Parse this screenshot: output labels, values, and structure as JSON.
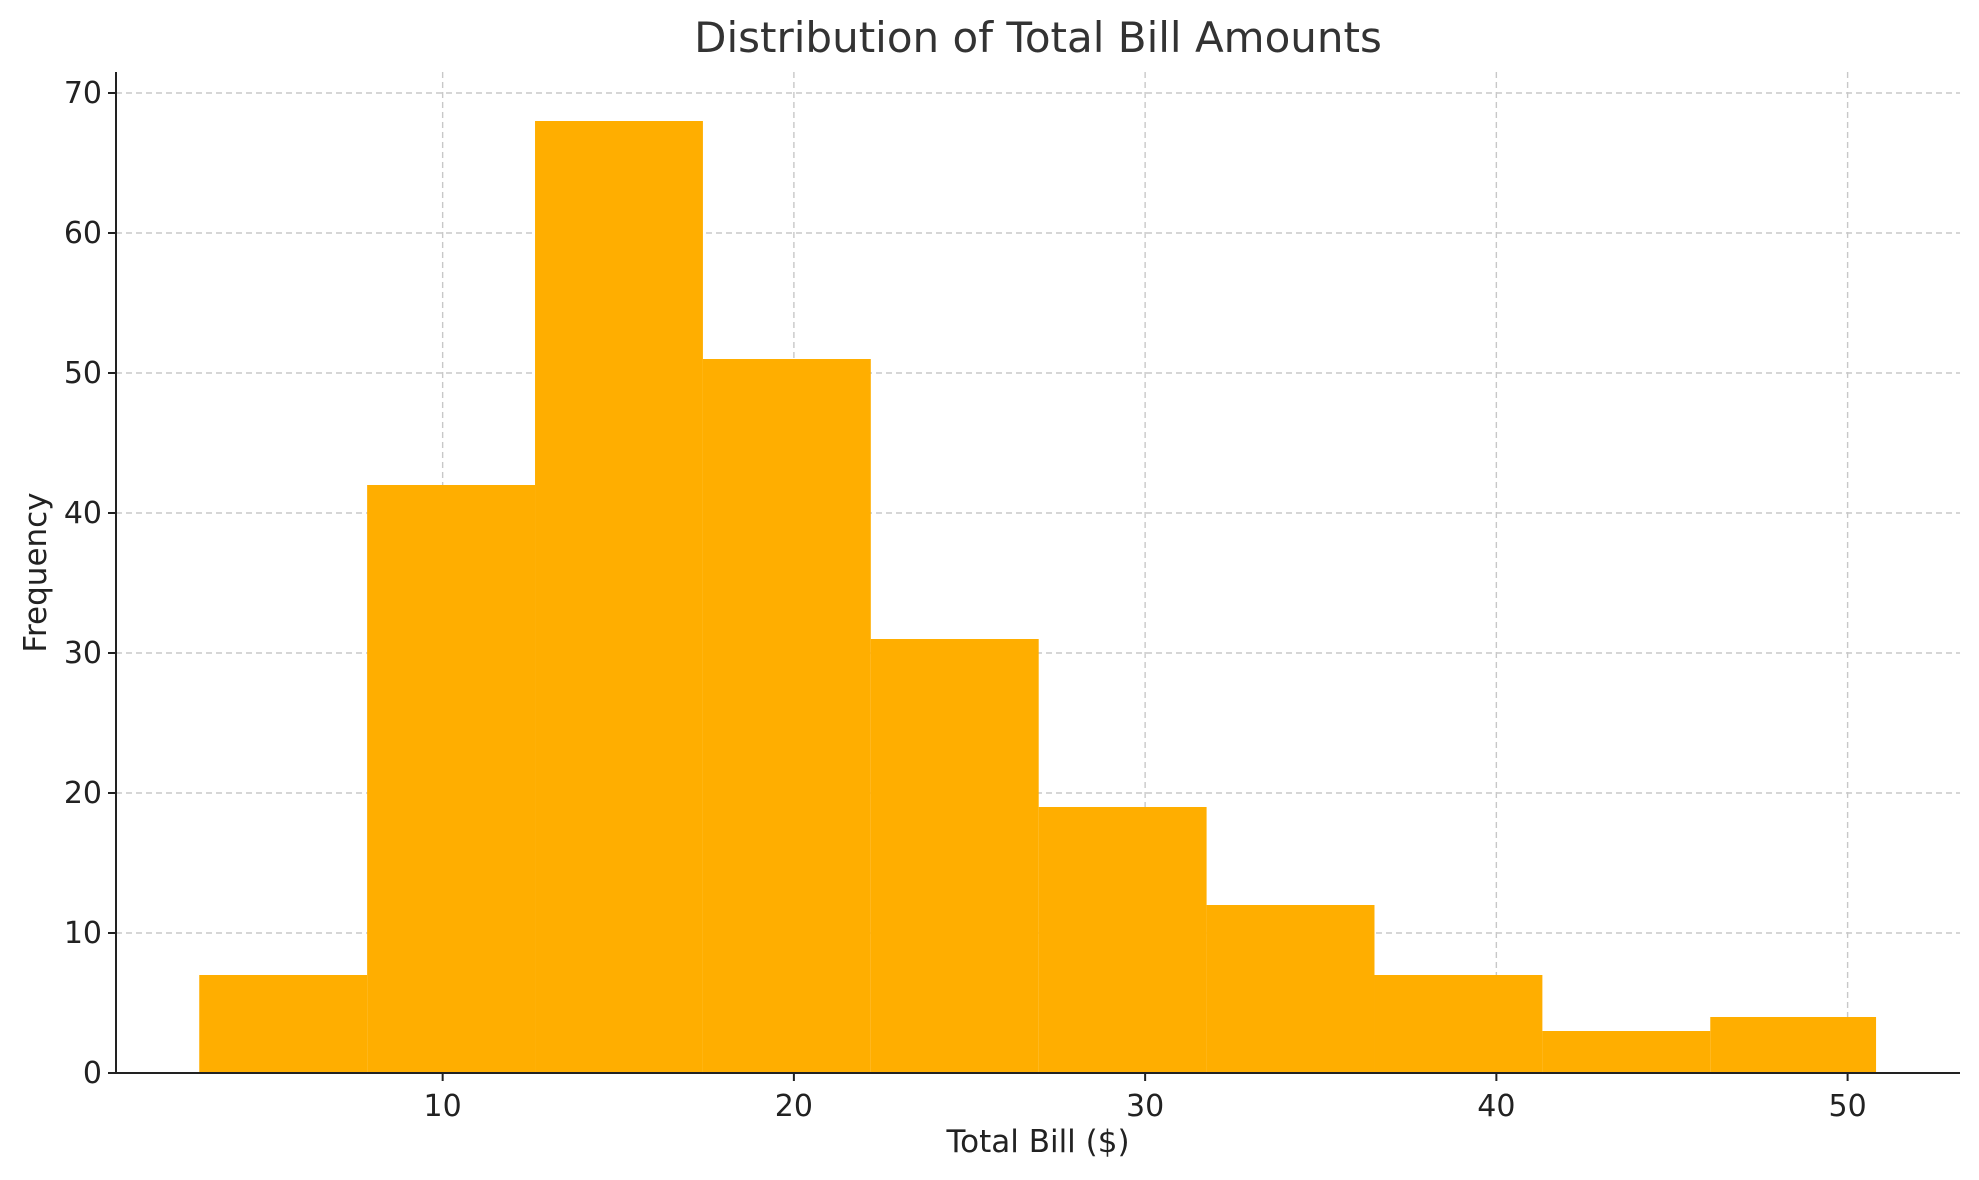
{
  "chart_data": {
    "type": "bar",
    "title": "Distribution of Total Bill Amounts",
    "xlabel": "Total Bill ($)",
    "ylabel": "Frequency",
    "bin_edges": [
      3.07,
      7.85,
      12.63,
      17.41,
      22.19,
      26.97,
      31.75,
      36.53,
      41.31,
      46.09,
      50.81
    ],
    "values": [
      7,
      42,
      68,
      51,
      31,
      19,
      12,
      7,
      3,
      4
    ],
    "xlim": [
      0.7,
      53.2
    ],
    "ylim": [
      0,
      71.5
    ],
    "xticks": [
      10,
      20,
      30,
      40,
      50
    ],
    "yticks": [
      0,
      10,
      20,
      30,
      40,
      50,
      60,
      70
    ],
    "grid": true,
    "bar_color": "#FFAE00"
  }
}
